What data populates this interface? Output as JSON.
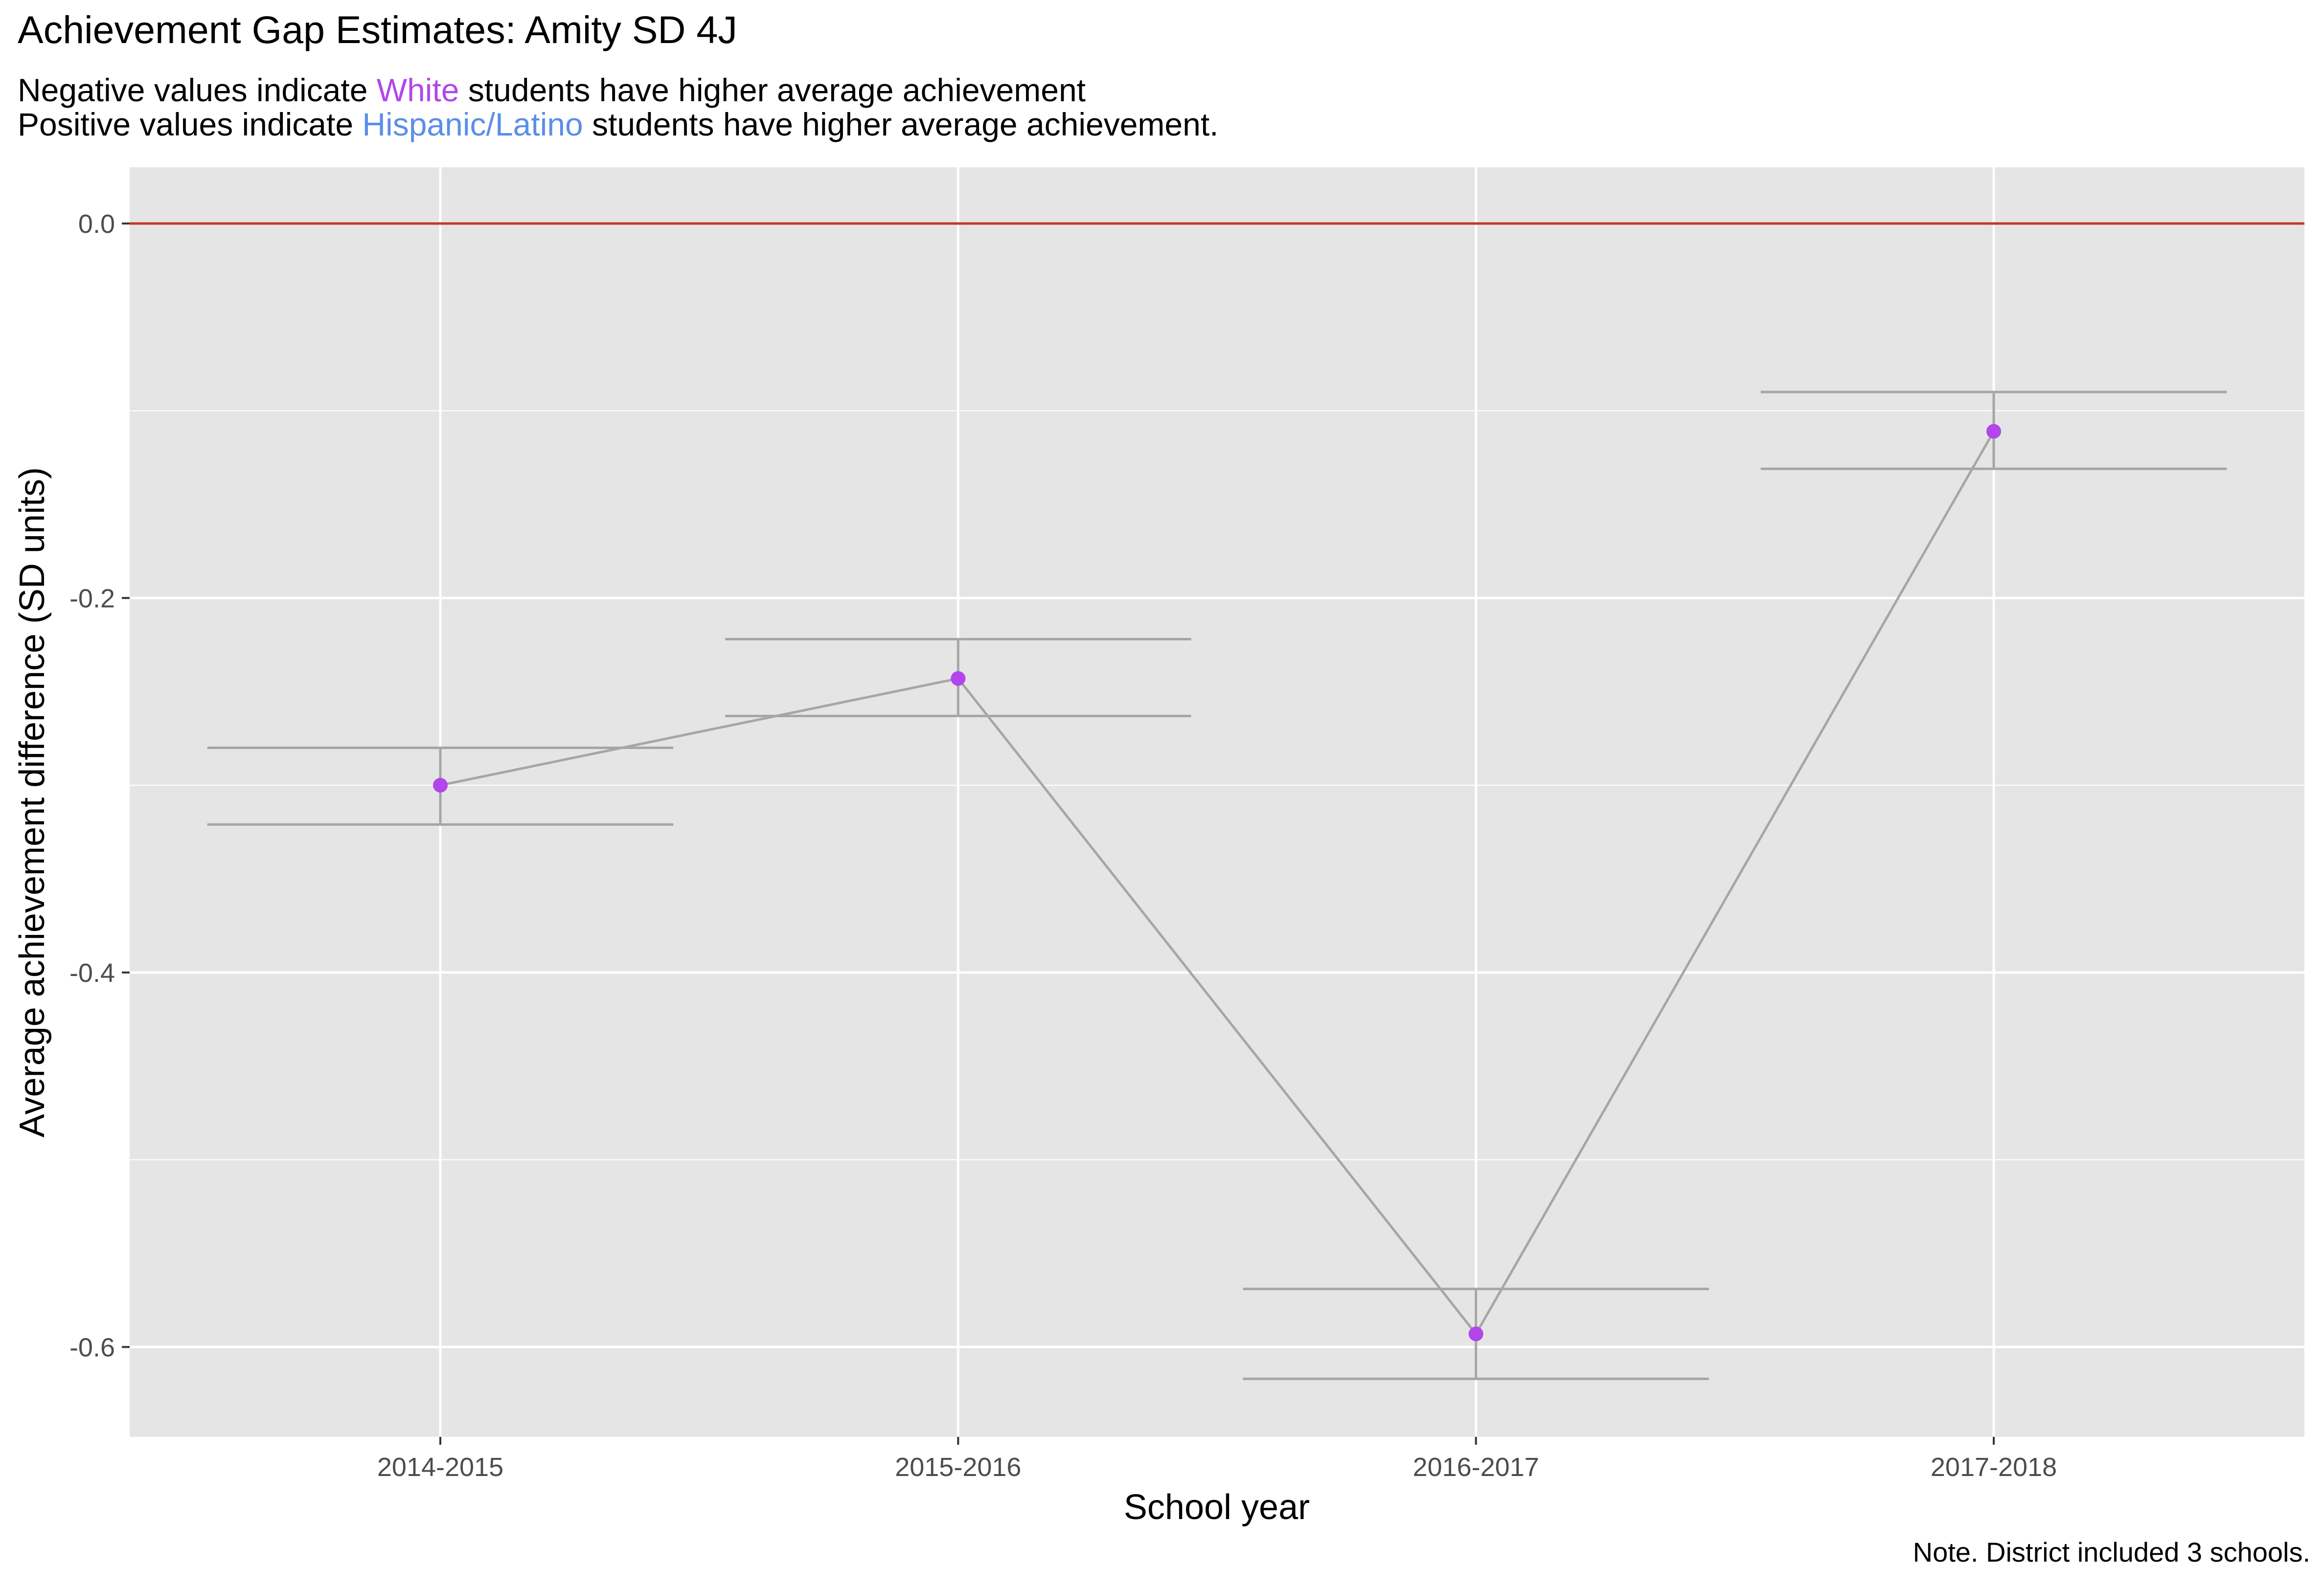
{
  "title": "Achievement Gap Estimates: Amity SD 4J",
  "subtitle": {
    "line1_pre": "Negative values indicate ",
    "line1_group": "White",
    "line1_post": " students have higher average achievement",
    "line2_pre": "Positive values indicate ",
    "line2_group": "Hispanic/Latino",
    "line2_post": " students have higher average achievement."
  },
  "caption": "Note. District included 3 schools.",
  "colors": {
    "white_group": "#b246ea",
    "hispanic_group": "#5b8ee8",
    "point": "#b246ea",
    "line": "#a6a6a6",
    "reference_line": "#c0392b",
    "panel_background": "#e5e5e5",
    "grid": "#ffffff"
  },
  "chart_data": {
    "type": "line",
    "xlabel": "School year",
    "ylabel": "Average achievement difference (SD units)",
    "categories": [
      "2014-2015",
      "2015-2016",
      "2016-2017",
      "2017-2018"
    ],
    "values": [
      -0.3,
      -0.243,
      -0.593,
      -0.111
    ],
    "error_lower": [
      -0.321,
      -0.263,
      -0.617,
      -0.131
    ],
    "error_upper": [
      -0.28,
      -0.222,
      -0.569,
      -0.09
    ],
    "ylim": [
      -0.648,
      0.03
    ],
    "yticks": [
      0.0,
      -0.2,
      -0.4,
      -0.6
    ],
    "ytick_labels": [
      "0.0",
      "-0.2",
      "-0.4",
      "-0.6"
    ],
    "reference_line_y": 0.0,
    "grid": true,
    "legend": "none"
  }
}
